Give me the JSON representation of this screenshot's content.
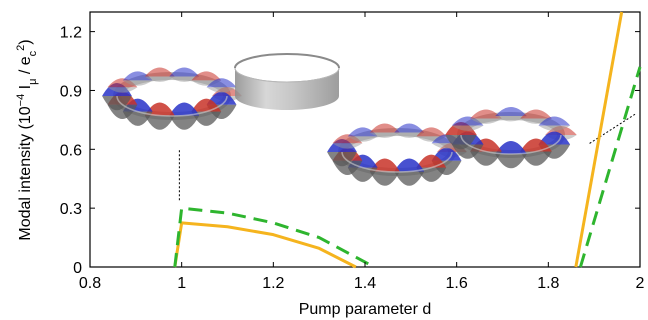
{
  "chart_data": {
    "type": "line",
    "xlabel": "Pump parameter d",
    "ylabel": "Modal intensity (10⁻⁴ Iᵤ / eᶜ²)",
    "xlim": [
      0.8,
      2.0
    ],
    "ylim": [
      0,
      1.3
    ],
    "xticks": [
      "0.8",
      "1",
      "1.2",
      "1.4",
      "1.6",
      "1.8",
      "2"
    ],
    "yticks": [
      "0",
      "0.3",
      "0.6",
      "0.9",
      "1.2"
    ],
    "grid": false,
    "series": [
      {
        "style": "solid",
        "color": "#f5b41e",
        "segments": [
          {
            "x": [
              0.985,
              1.0,
              1.1,
              1.2,
              1.3,
              1.38
            ],
            "y": [
              0,
              0.225,
              0.205,
              0.165,
              0.095,
              0
            ]
          },
          {
            "x": [
              1.86,
              1.96
            ],
            "y": [
              0,
              1.3
            ]
          }
        ]
      },
      {
        "style": "dashed",
        "color": "#2eb52e",
        "segments": [
          {
            "x": [
              0.985,
              1.0,
              1.1,
              1.2,
              1.3,
              1.42
            ],
            "y": [
              0,
              0.3,
              0.275,
              0.225,
              0.15,
              0
            ]
          },
          {
            "x": [
              1.87,
              2.0
            ],
            "y": [
              0,
              1.02
            ]
          }
        ]
      }
    ],
    "annotations": [
      {
        "type": "dotted-leader",
        "from": [
          0.995,
          0.34
        ],
        "to": [
          0.995,
          0.6
        ]
      },
      {
        "type": "dotted-leader",
        "from": [
          1.89,
          0.63
        ],
        "to": [
          1.99,
          0.78
        ]
      }
    ]
  },
  "insets": [
    {
      "name": "mode-pattern-ring-1",
      "kind": "lasing-mode-ring",
      "colors": {
        "pos": "#c83228",
        "neg": "#2832c8",
        "ring": "#909090"
      }
    },
    {
      "name": "cavity-ring",
      "kind": "plain-ring",
      "colors": {
        "ring": "#a8a8a8"
      }
    },
    {
      "name": "mode-pattern-ring-2",
      "kind": "lasing-mode-ring",
      "colors": {
        "pos": "#c83228",
        "neg": "#2832c8",
        "ring": "#909090"
      }
    },
    {
      "name": "mode-pattern-ring-3",
      "kind": "lasing-mode-ring",
      "colors": {
        "pos": "#c83228",
        "neg": "#2832c8",
        "ring": "#909090"
      }
    }
  ]
}
